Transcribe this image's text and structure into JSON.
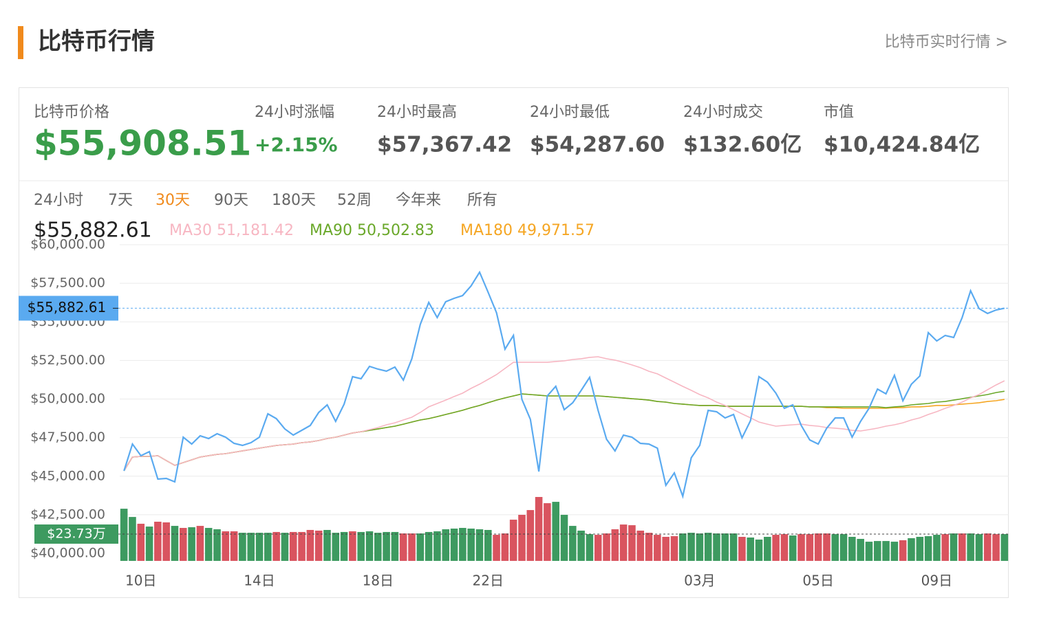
{
  "header": {
    "title": "比特币行情",
    "link": "比特币实时行情 >"
  },
  "stats": [
    {
      "label": "比特币价格",
      "value": "$55,908.51",
      "color": "#3a9d4a"
    },
    {
      "label": "24小时涨幅",
      "value": "+2.15%",
      "color": "#3a9d4a"
    },
    {
      "label": "24小时最高",
      "value": "$57,367.42",
      "color": "#555555"
    },
    {
      "label": "24小时最低",
      "value": "$54,287.60",
      "color": "#555555"
    },
    {
      "label": "24小时成交",
      "value": "$132.60亿",
      "color": "#555555"
    },
    {
      "label": "市值",
      "value": "$10,424.84亿",
      "color": "#555555"
    }
  ],
  "ranges": [
    "24小时",
    "7天",
    "30天",
    "90天",
    "180天",
    "52周",
    "今年来",
    "所有"
  ],
  "selected_range": 2,
  "readout": {
    "price": "$55,882.61",
    "ma": [
      "MA30 51,181.42",
      "MA90 50,502.83",
      "MA180 49,971.57"
    ]
  },
  "chart_data": {
    "type": "line",
    "categories": [
      null,
      null,
      "10日",
      null,
      null,
      null,
      null,
      null,
      null,
      null,
      null,
      null,
      null,
      null,
      null,
      null,
      "14日",
      null,
      null,
      null,
      null,
      null,
      null,
      null,
      null,
      null,
      null,
      null,
      null,
      null,
      "18日",
      null,
      null,
      null,
      null,
      null,
      null,
      null,
      null,
      null,
      null,
      null,
      null,
      "22日",
      null,
      null,
      null,
      null,
      null,
      null,
      null,
      null,
      null,
      null,
      null,
      null,
      null,
      null,
      null,
      null,
      null,
      null,
      null,
      null,
      null,
      null,
      null,
      null,
      "03月",
      null,
      null,
      null,
      null,
      null,
      null,
      null,
      null,
      null,
      null,
      null,
      null,
      null,
      "05日",
      null,
      null,
      null,
      null,
      null,
      null,
      null,
      null,
      null,
      null,
      null,
      null,
      null,
      "09日",
      null,
      null,
      null,
      null,
      null,
      null,
      null,
      null
    ],
    "ylim": [
      40000,
      60000
    ],
    "yticks": [
      {
        "value": 40000,
        "label": "$40,000.00"
      },
      {
        "value": 42500,
        "label": "$42,500.00"
      },
      {
        "value": 45000,
        "label": "$45,000.00"
      },
      {
        "value": 47500,
        "label": "$47,500.00"
      },
      {
        "value": 50000,
        "label": "$50,000.00"
      },
      {
        "value": 52500,
        "label": "$52,500.00"
      },
      {
        "value": 55000,
        "label": "$55,000.00"
      },
      {
        "value": 57500,
        "label": "$57,500.00"
      },
      {
        "value": 60000,
        "label": "$60,000.00"
      }
    ],
    "y2lim": [
      0,
      280
    ],
    "grid": true,
    "last_price_label": "$55,882.61",
    "series": [
      {
        "color": "#5aaaf0",
        "values": [
          45345,
          47083,
          46325,
          46593,
          44811,
          44855,
          44633,
          47528,
          47083,
          47617,
          47439,
          47751,
          47528,
          47127,
          46993,
          47172,
          47528,
          49042,
          48731,
          48062,
          47662,
          47973,
          48285,
          49132,
          49621,
          48552,
          49666,
          51448,
          51314,
          52116,
          51938,
          51804,
          52071,
          51225,
          52606,
          54833,
          56258,
          55278,
          56303,
          56526,
          56704,
          57327,
          58218,
          56927,
          55590,
          53229,
          54120,
          49978,
          48686,
          45301,
          50201,
          50824,
          49310,
          49755,
          50557,
          51403,
          49265,
          47394,
          46637,
          47662,
          47528,
          47127,
          47083,
          46815,
          44410,
          45212,
          43697,
          46192,
          46993,
          49265,
          49176,
          48775,
          48998,
          47483,
          48597,
          51448,
          51091,
          50379,
          49399,
          49621,
          48285,
          47350,
          47083,
          48107,
          48775,
          48775,
          47528,
          48552,
          49399,
          50646,
          50334,
          51537,
          49889,
          50958,
          51492,
          54298,
          53764,
          54120,
          53987,
          55278,
          57016,
          55858,
          55546,
          55768,
          55882.61
        ]
      },
      {
        "color": "#f7b6c2",
        "values": [
          45350,
          46240,
          46280,
          46280,
          46330,
          46010,
          45700,
          45880,
          46060,
          46240,
          46330,
          46410,
          46460,
          46550,
          46640,
          46730,
          46820,
          46900,
          46990,
          47040,
          47080,
          47170,
          47220,
          47310,
          47440,
          47530,
          47660,
          47800,
          47880,
          48020,
          48150,
          48330,
          48460,
          48640,
          48820,
          49130,
          49490,
          49710,
          49930,
          50160,
          50380,
          50690,
          50960,
          51270,
          51580,
          51980,
          52380,
          52380,
          52380,
          52380,
          52380,
          52430,
          52470,
          52560,
          52610,
          52700,
          52740,
          52610,
          52520,
          52380,
          52210,
          52030,
          51800,
          51630,
          51360,
          51090,
          50820,
          50560,
          50290,
          50070,
          49800,
          49580,
          49310,
          49040,
          48780,
          48510,
          48370,
          48240,
          48290,
          48330,
          48370,
          48290,
          48240,
          48150,
          48110,
          48060,
          47970,
          47930,
          48020,
          48110,
          48240,
          48330,
          48460,
          48640,
          48780,
          49000,
          49180,
          49400,
          49580,
          49800,
          50070,
          50290,
          50600,
          50910,
          51181.42
        ]
      },
      {
        "color": "#6aa82a",
        "values": [
          45350,
          46240,
          46280,
          46280,
          46330,
          46010,
          45700,
          45880,
          46060,
          46240,
          46330,
          46410,
          46460,
          46550,
          46640,
          46730,
          46820,
          46900,
          46990,
          47040,
          47080,
          47170,
          47220,
          47310,
          47440,
          47530,
          47660,
          47800,
          47880,
          47970,
          48060,
          48150,
          48240,
          48370,
          48510,
          48640,
          48730,
          48860,
          49000,
          49130,
          49270,
          49440,
          49580,
          49760,
          49930,
          50070,
          50200,
          50330,
          50290,
          50250,
          50200,
          50200,
          50200,
          50200,
          50200,
          50200,
          50200,
          50160,
          50110,
          50070,
          50020,
          49980,
          49930,
          49840,
          49800,
          49710,
          49670,
          49620,
          49580,
          49580,
          49580,
          49530,
          49530,
          49530,
          49530,
          49530,
          49530,
          49530,
          49530,
          49530,
          49530,
          49490,
          49490,
          49490,
          49490,
          49490,
          49490,
          49490,
          49490,
          49490,
          49440,
          49490,
          49530,
          49620,
          49670,
          49710,
          49800,
          49840,
          49930,
          50020,
          50110,
          50200,
          50290,
          50420,
          50502.83
        ]
      },
      {
        "color": "#f5a623",
        "values": [
          45350,
          46240,
          46280,
          46280,
          46330,
          46010,
          45700,
          45880,
          46060,
          46240,
          46330,
          46410,
          46460,
          46550,
          46640,
          46730,
          46820,
          46900,
          46990,
          47040,
          47080,
          47170,
          47220,
          47310,
          47440,
          47530,
          47660,
          47800,
          47880,
          47970,
          48060,
          48150,
          48240,
          48370,
          48510,
          48640,
          48730,
          48860,
          49000,
          49130,
          49270,
          49440,
          49580,
          49760,
          49930,
          50070,
          50200,
          50330,
          50290,
          50250,
          50200,
          50200,
          50200,
          50200,
          50200,
          50200,
          50200,
          50160,
          50110,
          50070,
          50020,
          49980,
          49930,
          49840,
          49800,
          49710,
          49670,
          49620,
          49580,
          49580,
          49580,
          49530,
          49530,
          49530,
          49530,
          49530,
          49530,
          49530,
          49530,
          49530,
          49530,
          49490,
          49490,
          49440,
          49440,
          49400,
          49400,
          49400,
          49400,
          49400,
          49400,
          49440,
          49440,
          49490,
          49490,
          49530,
          49580,
          49580,
          49620,
          49670,
          49710,
          49760,
          49840,
          49890,
          49971.57
        ]
      },
      {
        "type": "bar",
        "axis": "y2",
        "last_label": "$23.73万",
        "values": [
          46.2,
          38.9,
          32.9,
          30.4,
          34.7,
          34.1,
          31.0,
          29.2,
          29.8,
          31.0,
          29.2,
          28.0,
          26.2,
          26.2,
          24.9,
          24.9,
          24.9,
          24.9,
          25.6,
          24.9,
          25.6,
          25.6,
          27.4,
          26.8,
          27.4,
          24.9,
          25.6,
          26.2,
          25.6,
          26.2,
          24.9,
          25.6,
          25.6,
          24.3,
          24.3,
          24.3,
          25.6,
          26.2,
          28.0,
          28.6,
          29.2,
          28.6,
          28.0,
          27.4,
          23.1,
          24.3,
          36.5,
          40.8,
          45.0,
          56.6,
          51.1,
          52.3,
          40.8,
          31.0,
          26.8,
          23.7,
          23.1,
          24.3,
          28.0,
          32.2,
          31.6,
          26.8,
          24.9,
          23.1,
          21.3,
          21.9,
          24.3,
          24.9,
          24.3,
          24.9,
          24.3,
          24.3,
          24.3,
          21.3,
          20.7,
          18.9,
          21.3,
          23.1,
          23.7,
          22.5,
          23.7,
          23.7,
          24.3,
          24.3,
          23.7,
          23.7,
          21.3,
          19.5,
          17.0,
          17.6,
          17.6,
          17.0,
          18.3,
          20.1,
          21.3,
          21.9,
          23.1,
          23.7,
          24.3,
          24.3,
          24.3,
          23.7,
          24.3,
          23.7,
          23.73
        ],
        "colors": [
          "#3d9a60",
          "#3d9a60",
          "#d9545f",
          "#3d9a60",
          "#d9545f",
          "#d9545f",
          "#3d9a60",
          "#d9545f",
          "#3d9a60",
          "#d9545f",
          "#3d9a60",
          "#3d9a60",
          "#d9545f",
          "#d9545f",
          "#3d9a60",
          "#3d9a60",
          "#3d9a60",
          "#3d9a60",
          "#d9545f",
          "#3d9a60",
          "#d9545f",
          "#d9545f",
          "#d9545f",
          "#d9545f",
          "#3d9a60",
          "#3d9a60",
          "#3d9a60",
          "#d9545f",
          "#3d9a60",
          "#3d9a60",
          "#3d9a60",
          "#3d9a60",
          "#3d9a60",
          "#d9545f",
          "#d9545f",
          "#3d9a60",
          "#3d9a60",
          "#3d9a60",
          "#3d9a60",
          "#3d9a60",
          "#3d9a60",
          "#3d9a60",
          "#3d9a60",
          "#3d9a60",
          "#d9545f",
          "#d9545f",
          "#d9545f",
          "#d9545f",
          "#d9545f",
          "#d9545f",
          "#d9545f",
          "#3d9a60",
          "#3d9a60",
          "#3d9a60",
          "#3d9a60",
          "#3d9a60",
          "#d9545f",
          "#d9545f",
          "#d9545f",
          "#d9545f",
          "#d9545f",
          "#d9545f",
          "#d9545f",
          "#d9545f",
          "#d9545f",
          "#d9545f",
          "#3d9a60",
          "#3d9a60",
          "#3d9a60",
          "#3d9a60",
          "#3d9a60",
          "#3d9a60",
          "#3d9a60",
          "#d9545f",
          "#3d9a60",
          "#3d9a60",
          "#3d9a60",
          "#d9545f",
          "#d9545f",
          "#3d9a60",
          "#d9545f",
          "#d9545f",
          "#d9545f",
          "#d9545f",
          "#3d9a60",
          "#3d9a60",
          "#3d9a60",
          "#3d9a60",
          "#3d9a60",
          "#3d9a60",
          "#3d9a60",
          "#3d9a60",
          "#d9545f",
          "#3d9a60",
          "#3d9a60",
          "#3d9a60",
          "#3d9a60",
          "#d9545f",
          "#3d9a60",
          "#d9545f",
          "#3d9a60",
          "#3d9a60",
          "#d9545f",
          "#d9545f",
          "#3d9a60"
        ]
      }
    ]
  }
}
